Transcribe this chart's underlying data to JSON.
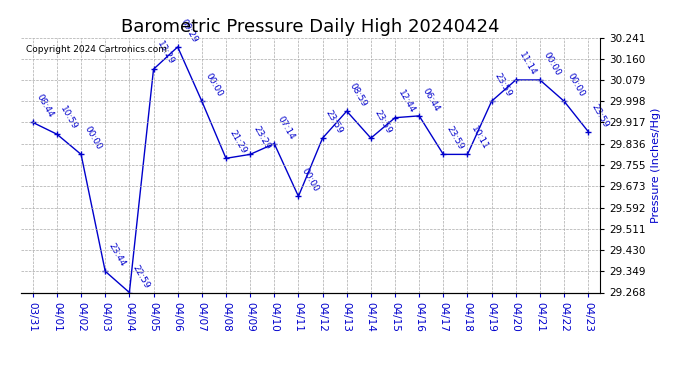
{
  "title": "Barometric Pressure Daily High 20240424",
  "ylabel": "Pressure (Inches/Hg)",
  "copyright": "Copyright 2024 Cartronics.com",
  "background_color": "#ffffff",
  "line_color": "#0000cc",
  "text_color": "#0000cc",
  "ylim": [
    29.268,
    30.241
  ],
  "yticks": [
    29.268,
    29.349,
    29.43,
    29.511,
    29.592,
    29.673,
    29.755,
    29.836,
    29.917,
    29.998,
    30.079,
    30.16,
    30.241
  ],
  "dates": [
    "03/31",
    "04/01",
    "04/02",
    "04/03",
    "04/04",
    "04/05",
    "04/06",
    "04/07",
    "04/08",
    "04/09",
    "04/10",
    "04/11",
    "04/12",
    "04/13",
    "04/14",
    "04/15",
    "04/16",
    "04/17",
    "04/18",
    "04/19",
    "04/20",
    "04/21",
    "04/22",
    "04/23"
  ],
  "values": [
    29.917,
    29.872,
    29.795,
    29.349,
    29.268,
    30.12,
    30.205,
    29.998,
    29.78,
    29.795,
    29.836,
    29.635,
    29.857,
    29.96,
    29.857,
    29.935,
    29.942,
    29.795,
    29.795,
    29.998,
    30.079,
    30.079,
    29.998,
    29.882
  ],
  "time_labels": [
    "08:44",
    "10:59",
    "00:00",
    "23:44",
    "22:59",
    "13:29",
    "09:29",
    "00:00",
    "21:29",
    "23:29",
    "07:14",
    "00:00",
    "23:59",
    "08:59",
    "23:59",
    "12:44",
    "06:44",
    "23:59",
    "10:11",
    "23:59",
    "11:14",
    "00:00",
    "00:00",
    "23:59"
  ],
  "grid_color": "#aaaaaa",
  "marker": "+",
  "marker_size": 5,
  "title_fontsize": 13,
  "label_fontsize": 8,
  "tick_fontsize": 7.5,
  "annot_fontsize": 6.5
}
